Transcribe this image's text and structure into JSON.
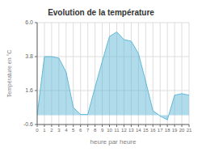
{
  "chart_data": {
    "type": "area",
    "title": "Evolution de la température",
    "xlabel": "heure par heure",
    "ylabel": "Température en °C",
    "x": [
      0,
      1,
      2,
      3,
      4,
      5,
      6,
      7,
      8,
      9,
      10,
      11,
      12,
      13,
      14,
      15,
      16,
      17,
      18,
      19,
      20,
      21
    ],
    "values": [
      0.0,
      3.8,
      3.8,
      3.7,
      2.8,
      0.5,
      0.05,
      0.05,
      1.8,
      3.5,
      5.1,
      5.4,
      4.9,
      4.8,
      4.0,
      2.2,
      0.3,
      -0.05,
      -0.3,
      1.3,
      1.4,
      1.3
    ],
    "color": "#60b8d8",
    "xlim": [
      0,
      21
    ],
    "xticks": [
      0,
      1,
      2,
      3,
      4,
      5,
      6,
      7,
      8,
      9,
      10,
      11,
      12,
      13,
      14,
      15,
      16,
      17,
      18,
      19,
      20,
      21
    ],
    "ylim": [
      -0.6,
      6.0
    ],
    "yticks": [
      -0.6,
      1.6,
      3.8,
      {
        "value": 6.0,
        "label": "6.0"
      }
    ],
    "grid": true
  }
}
